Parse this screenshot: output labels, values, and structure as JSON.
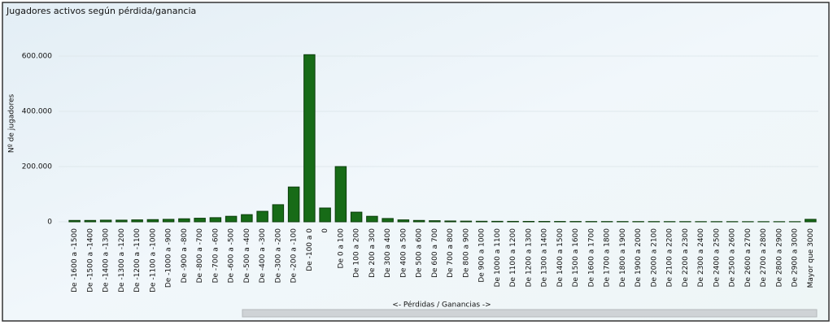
{
  "chart_data": {
    "type": "bar",
    "title": "Jugadores activos según pérdida/ganancia",
    "y_label": "Nº de jugadores",
    "x_label": "<- Pérdidas / Ganancias ->",
    "categories": [
      "De -1600 a -1500",
      "De -1500 a -1400",
      "De -1400 a -1300",
      "De -1300 a -1200",
      "De -1200 a -1100",
      "De -1100 a -1000",
      "De -1000 a -900",
      "De -900 a -800",
      "De -800 a -700",
      "De -700 a -600",
      "De -600 a -500",
      "De -500 a -400",
      "De -400 a -300",
      "De -300 a -200",
      "De -200 a -100",
      "De -100 a 0",
      "0",
      "De 0 a 100",
      "De 100 a 200",
      "De 200 a 300",
      "De 300 a 400",
      "De 400 a 500",
      "De 500 a 600",
      "De 600 a 700",
      "De 700 a 800",
      "De 800 a 900",
      "De 900 a 1000",
      "De 1000 a 1100",
      "De 1100 a 1200",
      "De 1200 a 1300",
      "De 1300 a 1400",
      "De 1400 a 1500",
      "De 1500 a 1600",
      "De 1600 a 1700",
      "De 1700 a 1800",
      "De 1800 a 1900",
      "De 1900 a 2000",
      "De 2000 a 2100",
      "De 2100 a 2200",
      "De 2200 a 2300",
      "De 2300 a 2400",
      "De 2400 a 2500",
      "De 2500 a 2600",
      "De 2600 a 2700",
      "De 2700 a 2800",
      "De 2800 a 2900",
      "De 2900 a 3000",
      "Mayor que 3000"
    ],
    "values": [
      5000,
      5000,
      6000,
      6000,
      7000,
      8000,
      9000,
      11000,
      13000,
      15000,
      20000,
      26000,
      38000,
      62000,
      126000,
      605000,
      50000,
      200000,
      35000,
      20000,
      12000,
      7000,
      5000,
      4000,
      3000,
      2500,
      2000,
      1800,
      1600,
      1500,
      1400,
      1300,
      1200,
      1100,
      1000,
      1000,
      900,
      900,
      800,
      800,
      700,
      700,
      700,
      600,
      600,
      600,
      600,
      9000
    ],
    "color": "#176b17",
    "ylim": [
      0,
      700000
    ],
    "yticks": [
      0,
      {
        "value": 200000,
        "label": "200.000"
      },
      {
        "value": 400000,
        "label": "400.000"
      },
      {
        "value": 600000,
        "label": "600.000"
      }
    ],
    "grid": true
  }
}
